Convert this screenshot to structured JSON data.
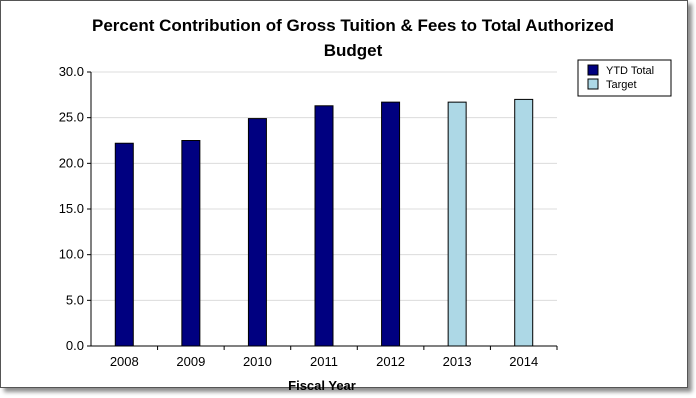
{
  "chart_data": {
    "type": "bar",
    "title_line1": "Percent Contribution of Gross Tuition & Fees to Total Authorized",
    "title_line2": "Budget",
    "xlabel": "Fiscal Year",
    "ylabel": "",
    "ylim": [
      0,
      30
    ],
    "yticks": [
      "0.0",
      "5.0",
      "10.0",
      "15.0",
      "20.0",
      "25.0",
      "30.0"
    ],
    "grid": true,
    "legend_position": "top-right",
    "categories": [
      "2008",
      "2009",
      "2010",
      "2011",
      "2012",
      "2013",
      "2014"
    ],
    "series": [
      {
        "name": "YTD Total",
        "color": "#000080",
        "values": [
          22.2,
          22.5,
          24.9,
          26.3,
          26.7,
          null,
          null
        ]
      },
      {
        "name": "Target",
        "color": "#add8e6",
        "values": [
          null,
          null,
          null,
          null,
          null,
          26.7,
          27.0
        ]
      }
    ]
  }
}
